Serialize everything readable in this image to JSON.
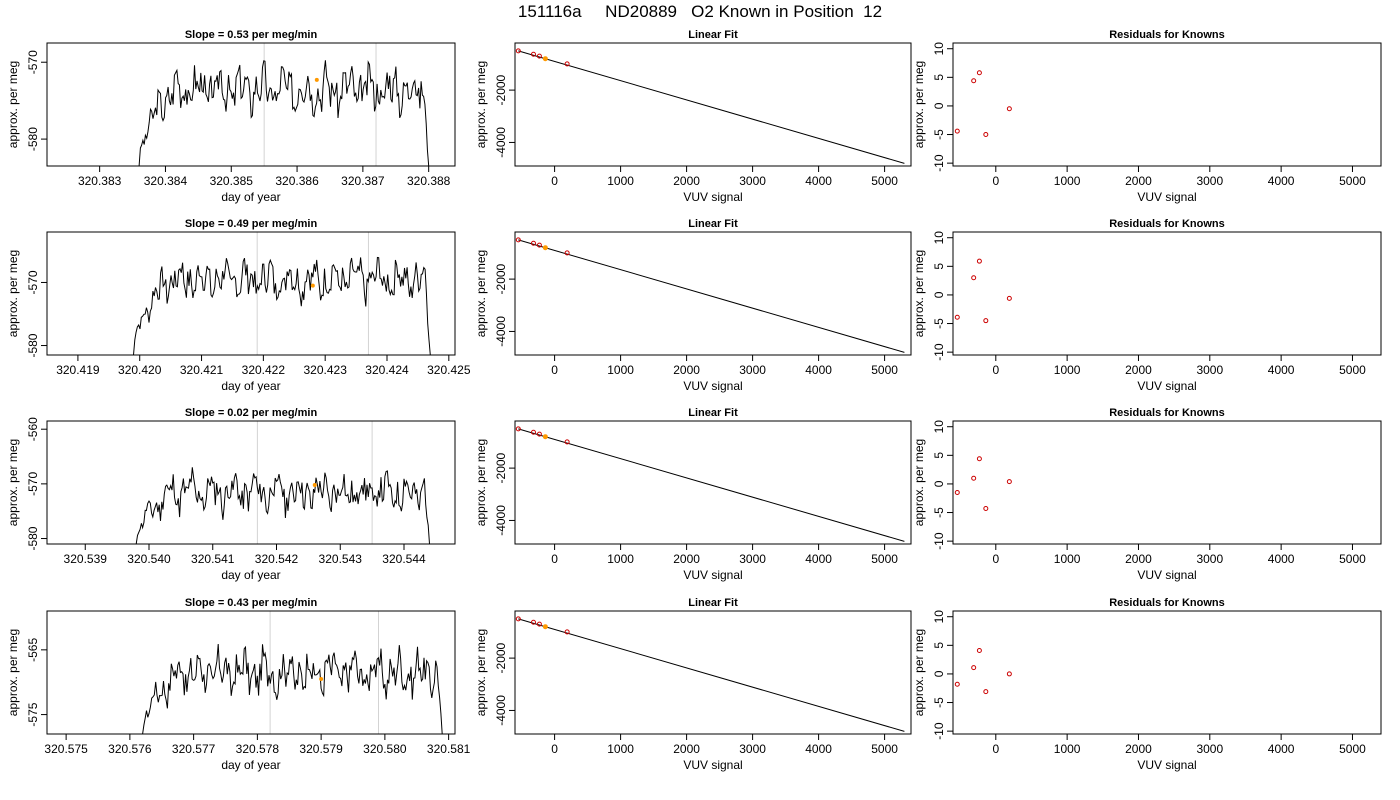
{
  "title": "151116a     ND20889   O2 Known in Position  12",
  "colors": {
    "trace": "#000000",
    "fit_line": "#000000",
    "known_point": "#cc0000",
    "highlight_point": "#ff9900",
    "marker_line": "#d3d3d3"
  },
  "chart_data": [
    {
      "type": "line",
      "row": 0,
      "panel": "timeseries",
      "title": "Slope =  0.53  per meg/min",
      "xlabel": "day of year",
      "ylabel": "approx. per meg",
      "xlim": [
        320.3822,
        320.3884
      ],
      "ylim": [
        -583.5,
        -567.5
      ],
      "x_ticks": [
        320.383,
        320.384,
        320.385,
        320.386,
        320.387,
        320.388
      ],
      "y_ticks": [
        -570,
        -580
      ],
      "trace": {
        "x_start": 320.3836,
        "x_end": 320.388,
        "baseline": -573.5,
        "amplitude": 2.4,
        "ramp_from": -583.5,
        "seed": 3
      },
      "markers_x": [
        320.3855,
        320.3872
      ],
      "highlight": {
        "x": 320.3863,
        "y": -572.3
      }
    },
    {
      "type": "scatter",
      "row": 0,
      "panel": "fit",
      "title": "Linear Fit",
      "xlabel": "VUV signal",
      "ylabel": "approx. per meg",
      "xlim": [
        -600,
        5400
      ],
      "ylim": [
        -4900,
        -200
      ],
      "x_ticks": [
        0,
        1000,
        2000,
        3000,
        4000,
        5000
      ],
      "y_ticks": [
        -2000,
        -4000
      ],
      "line": {
        "x": [
          -550,
          5300
        ],
        "y": [
          -500,
          -4800
        ]
      },
      "points": [
        {
          "x": -550,
          "y": -500
        },
        {
          "x": -320,
          "y": -630
        },
        {
          "x": -230,
          "y": -700
        },
        {
          "x": 190,
          "y": -1000
        }
      ],
      "highlight": {
        "x": -140,
        "y": -800
      }
    },
    {
      "type": "scatter",
      "row": 0,
      "panel": "residuals",
      "title": "Residuals for Knowns",
      "xlabel": "VUV signal",
      "ylabel": "approx. per meg",
      "xlim": [
        -600,
        5400
      ],
      "ylim": [
        -10.5,
        11
      ],
      "x_ticks": [
        0,
        1000,
        2000,
        3000,
        4000,
        5000
      ],
      "y_ticks": [
        10,
        5,
        0,
        -5,
        -10
      ],
      "points": [
        {
          "x": -540,
          "y": -4.4
        },
        {
          "x": -310,
          "y": 4.4
        },
        {
          "x": -230,
          "y": 5.8
        },
        {
          "x": -140,
          "y": -5.0
        },
        {
          "x": 190,
          "y": -0.5
        }
      ]
    },
    {
      "type": "line",
      "row": 1,
      "panel": "timeseries",
      "title": "Slope =  0.49  per meg/min",
      "xlabel": "day of year",
      "ylabel": "approx. per meg",
      "xlim": [
        320.4185,
        320.4251
      ],
      "ylim": [
        -581.5,
        -562
      ],
      "x_ticks": [
        320.419,
        320.42,
        320.421,
        320.422,
        320.423,
        320.424,
        320.425
      ],
      "y_ticks": [
        -570,
        -580
      ],
      "trace": {
        "x_start": 320.4199,
        "x_end": 320.4247,
        "baseline": -569.5,
        "amplitude": 2.6,
        "ramp_from": -581.5,
        "seed": 7
      },
      "markers_x": [
        320.4219,
        320.4237
      ],
      "highlight": {
        "x": 320.4228,
        "y": -570.5
      }
    },
    {
      "type": "scatter",
      "row": 1,
      "panel": "fit",
      "title": "Linear Fit",
      "xlabel": "VUV signal",
      "ylabel": "approx. per meg",
      "xlim": [
        -600,
        5400
      ],
      "ylim": [
        -4900,
        -200
      ],
      "x_ticks": [
        0,
        1000,
        2000,
        3000,
        4000,
        5000
      ],
      "y_ticks": [
        -2000,
        -4000
      ],
      "line": {
        "x": [
          -550,
          5300
        ],
        "y": [
          -500,
          -4800
        ]
      },
      "points": [
        {
          "x": -550,
          "y": -500
        },
        {
          "x": -320,
          "y": -630
        },
        {
          "x": -230,
          "y": -700
        },
        {
          "x": 190,
          "y": -1000
        }
      ],
      "highlight": {
        "x": -140,
        "y": -800
      }
    },
    {
      "type": "scatter",
      "row": 1,
      "panel": "residuals",
      "title": "Residuals for Knowns",
      "xlabel": "VUV signal",
      "ylabel": "approx. per meg",
      "xlim": [
        -600,
        5400
      ],
      "ylim": [
        -10.5,
        11
      ],
      "x_ticks": [
        0,
        1000,
        2000,
        3000,
        4000,
        5000
      ],
      "y_ticks": [
        10,
        5,
        0,
        -5,
        -10
      ],
      "points": [
        {
          "x": -540,
          "y": -3.9
        },
        {
          "x": -310,
          "y": 3.0
        },
        {
          "x": -230,
          "y": 5.9
        },
        {
          "x": -140,
          "y": -4.5
        },
        {
          "x": 190,
          "y": -0.6
        }
      ]
    },
    {
      "type": "line",
      "row": 2,
      "panel": "timeseries",
      "title": "Slope =  0.02  per meg/min",
      "xlabel": "day of year",
      "ylabel": "approx. per meg",
      "xlim": [
        320.5384,
        320.5448
      ],
      "ylim": [
        -581,
        -558.5
      ],
      "x_ticks": [
        320.539,
        320.54,
        320.541,
        320.542,
        320.543,
        320.544
      ],
      "y_ticks": [
        -560,
        -570,
        -580
      ],
      "trace": {
        "x_start": 320.5398,
        "x_end": 320.5444,
        "baseline": -571.5,
        "amplitude": 3.0,
        "ramp_from": -581,
        "seed": 11
      },
      "markers_x": [
        320.5417,
        320.5435
      ],
      "highlight": {
        "x": 320.5426,
        "y": -570.2
      }
    },
    {
      "type": "scatter",
      "row": 2,
      "panel": "fit",
      "title": "Linear Fit",
      "xlabel": "VUV signal",
      "ylabel": "approx. per meg",
      "xlim": [
        -600,
        5400
      ],
      "ylim": [
        -4900,
        -200
      ],
      "x_ticks": [
        0,
        1000,
        2000,
        3000,
        4000,
        5000
      ],
      "y_ticks": [
        -2000,
        -4000
      ],
      "line": {
        "x": [
          -550,
          5300
        ],
        "y": [
          -500,
          -4800
        ]
      },
      "points": [
        {
          "x": -550,
          "y": -500
        },
        {
          "x": -320,
          "y": -630
        },
        {
          "x": -230,
          "y": -700
        },
        {
          "x": 190,
          "y": -1000
        }
      ],
      "highlight": {
        "x": -140,
        "y": -800
      }
    },
    {
      "type": "scatter",
      "row": 2,
      "panel": "residuals",
      "title": "Residuals for Knowns",
      "xlabel": "VUV signal",
      "ylabel": "approx. per meg",
      "xlim": [
        -600,
        5400
      ],
      "ylim": [
        -10.5,
        11
      ],
      "x_ticks": [
        0,
        1000,
        2000,
        3000,
        4000,
        5000
      ],
      "y_ticks": [
        10,
        5,
        0,
        -5,
        -10
      ],
      "points": [
        {
          "x": -540,
          "y": -1.5
        },
        {
          "x": -310,
          "y": 1.0
        },
        {
          "x": -230,
          "y": 4.4
        },
        {
          "x": -140,
          "y": -4.3
        },
        {
          "x": 190,
          "y": 0.4
        }
      ]
    },
    {
      "type": "line",
      "row": 3,
      "panel": "timeseries",
      "title": "Slope =  0.43  per meg/min",
      "xlabel": "day of year",
      "ylabel": "approx. per meg",
      "xlim": [
        320.5747,
        320.5811
      ],
      "ylim": [
        -578,
        -559
      ],
      "x_ticks": [
        320.575,
        320.576,
        320.577,
        320.578,
        320.579,
        320.58,
        320.581
      ],
      "y_ticks": [
        -565,
        -575
      ],
      "trace": {
        "x_start": 320.5762,
        "x_end": 320.5809,
        "baseline": -568.5,
        "amplitude": 2.8,
        "ramp_from": -578,
        "seed": 17
      },
      "markers_x": [
        320.5782,
        320.5799
      ],
      "highlight": {
        "x": 320.579,
        "y": -569.5
      }
    },
    {
      "type": "scatter",
      "row": 3,
      "panel": "fit",
      "title": "Linear Fit",
      "xlabel": "VUV signal",
      "ylabel": "approx. per meg",
      "xlim": [
        -600,
        5400
      ],
      "ylim": [
        -4900,
        -200
      ],
      "x_ticks": [
        0,
        1000,
        2000,
        3000,
        4000,
        5000
      ],
      "y_ticks": [
        -2000,
        -4000
      ],
      "line": {
        "x": [
          -550,
          5300
        ],
        "y": [
          -500,
          -4800
        ]
      },
      "points": [
        {
          "x": -550,
          "y": -500
        },
        {
          "x": -320,
          "y": -630
        },
        {
          "x": -230,
          "y": -700
        },
        {
          "x": 190,
          "y": -1000
        }
      ],
      "highlight": {
        "x": -140,
        "y": -800
      }
    },
    {
      "type": "scatter",
      "row": 3,
      "panel": "residuals",
      "title": "Residuals for Knowns",
      "xlabel": "VUV signal",
      "ylabel": "approx. per meg",
      "xlim": [
        -600,
        5400
      ],
      "ylim": [
        -10.5,
        11
      ],
      "x_ticks": [
        0,
        1000,
        2000,
        3000,
        4000,
        5000
      ],
      "y_ticks": [
        10,
        5,
        0,
        -5,
        -10
      ],
      "points": [
        {
          "x": -540,
          "y": -1.8
        },
        {
          "x": -310,
          "y": 1.1
        },
        {
          "x": -230,
          "y": 4.1
        },
        {
          "x": -140,
          "y": -3.1
        },
        {
          "x": 190,
          "y": 0.0
        }
      ]
    }
  ]
}
